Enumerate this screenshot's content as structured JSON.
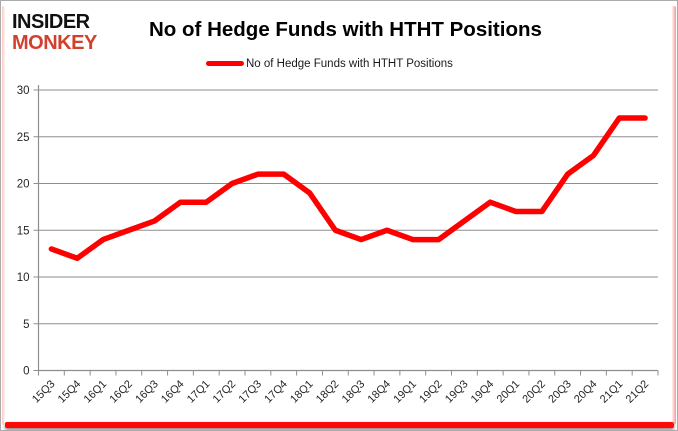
{
  "logo": {
    "line1": "INSIDER",
    "line2": "MONKEY",
    "red": "#d2402e"
  },
  "header": {
    "title": "No of Hedge Funds with HTHT Positions"
  },
  "legend": {
    "label": "No of Hedge Funds with HTHT Positions"
  },
  "chart_data": {
    "type": "line",
    "title": "No of Hedge Funds with HTHT Positions",
    "categories": [
      "15Q3",
      "15Q4",
      "16Q1",
      "16Q2",
      "16Q3",
      "16Q4",
      "17Q1",
      "17Q2",
      "17Q3",
      "17Q4",
      "18Q1",
      "18Q2",
      "18Q3",
      "18Q4",
      "19Q1",
      "19Q2",
      "19Q3",
      "19Q4",
      "20Q1",
      "20Q2",
      "20Q3",
      "20Q4",
      "21Q1",
      "21Q2"
    ],
    "series": [
      {
        "name": "No of Hedge Funds with HTHT Positions",
        "color": "#fe0000",
        "values": [
          13,
          12,
          14,
          15,
          16,
          18,
          18,
          20,
          21,
          21,
          19,
          15,
          14,
          15,
          14,
          14,
          16,
          18,
          17,
          17,
          21,
          23,
          27,
          27
        ]
      }
    ],
    "xlabel": "",
    "ylabel": "",
    "ylim": [
      0,
      30
    ],
    "ytick_step": 5,
    "yticks": [
      0,
      5,
      10,
      15,
      20,
      25,
      30
    ],
    "grid": true,
    "legend_position": "top-center"
  },
  "style": {
    "grid_color": "#8e8e8e",
    "axis_color": "#8e8e8e",
    "tick_text_color": "#262626",
    "border_red": "#fb0a08"
  }
}
